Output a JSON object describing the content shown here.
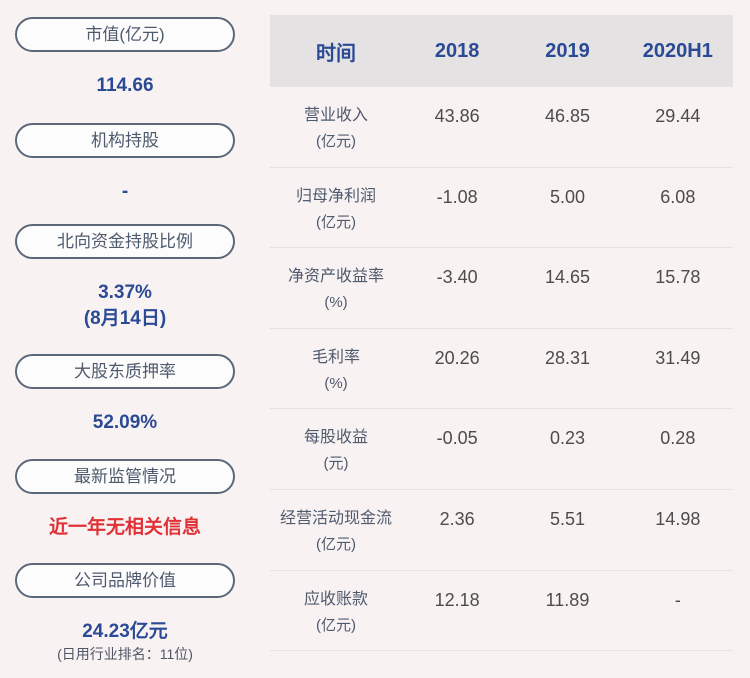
{
  "colors": {
    "page_background": "#f9f2f2",
    "table_header_background": "#e4e2e2",
    "accent_blue": "#2b4a96",
    "alert_red": "#e03137",
    "label_slate": "#4e5a6e",
    "number_gray": "#4c4c4c",
    "pill_border": "#5c6878",
    "divider": "#e7e1e1"
  },
  "sidebar": {
    "items": [
      {
        "label": "市值(亿元)",
        "value": "114.66"
      },
      {
        "label": "机构持股",
        "value": "-"
      },
      {
        "label": "北向资金持股比例",
        "value": "3.37%",
        "note": "(8月14日)"
      },
      {
        "label": "大股东质押率",
        "value": "52.09%"
      },
      {
        "label": "最新监管情况",
        "value": "近一年无相关信息"
      },
      {
        "label": "公司品牌价值",
        "value": "24.23亿元",
        "note": "(日用行业排名：11位)"
      }
    ]
  },
  "table": {
    "header": [
      "时间",
      "2018",
      "2019",
      "2020H1"
    ],
    "rows": [
      {
        "name": "营业收入",
        "unit": "(亿元)",
        "values": [
          "43.86",
          "46.85",
          "29.44"
        ]
      },
      {
        "name": "归母净利润",
        "unit": "(亿元)",
        "values": [
          "-1.08",
          "5.00",
          "6.08"
        ]
      },
      {
        "name": "净资产收益率",
        "unit": "(%)",
        "values": [
          "-3.40",
          "14.65",
          "15.78"
        ]
      },
      {
        "name": "毛利率",
        "unit": "(%)",
        "values": [
          "20.26",
          "28.31",
          "31.49"
        ]
      },
      {
        "name": "每股收益",
        "unit": "(元)",
        "values": [
          "-0.05",
          "0.23",
          "0.28"
        ]
      },
      {
        "name": "经营活动现金流",
        "unit": "(亿元)",
        "values": [
          "2.36",
          "5.51",
          "14.98"
        ]
      },
      {
        "name": "应收账款",
        "unit": "(亿元)",
        "values": [
          "12.18",
          "11.89",
          "-"
        ]
      }
    ]
  },
  "chart_data": {
    "type": "table",
    "columns": [
      "时间",
      "2018",
      "2019",
      "2020H1"
    ],
    "rows": [
      [
        "营业收入(亿元)",
        43.86,
        46.85,
        29.44
      ],
      [
        "归母净利润(亿元)",
        -1.08,
        5.0,
        6.08
      ],
      [
        "净资产收益率(%)",
        -3.4,
        14.65,
        15.78
      ],
      [
        "毛利率(%)",
        20.26,
        28.31,
        31.49
      ],
      [
        "每股收益(元)",
        -0.05,
        0.23,
        0.28
      ],
      [
        "经营活动现金流(亿元)",
        2.36,
        5.51,
        14.98
      ],
      [
        "应收账款(亿元)",
        12.18,
        11.89,
        null
      ]
    ],
    "side_stats": {
      "市值(亿元)": 114.66,
      "机构持股": null,
      "北向资金持股比例_pct": 3.37,
      "北向资金持股比例_date": "8月14日",
      "大股东质押率_pct": 52.09,
      "最新监管情况": "近一年无相关信息",
      "公司品牌价值_亿元": 24.23,
      "公司品牌价值_排名": "日用行业排名：11位"
    }
  }
}
